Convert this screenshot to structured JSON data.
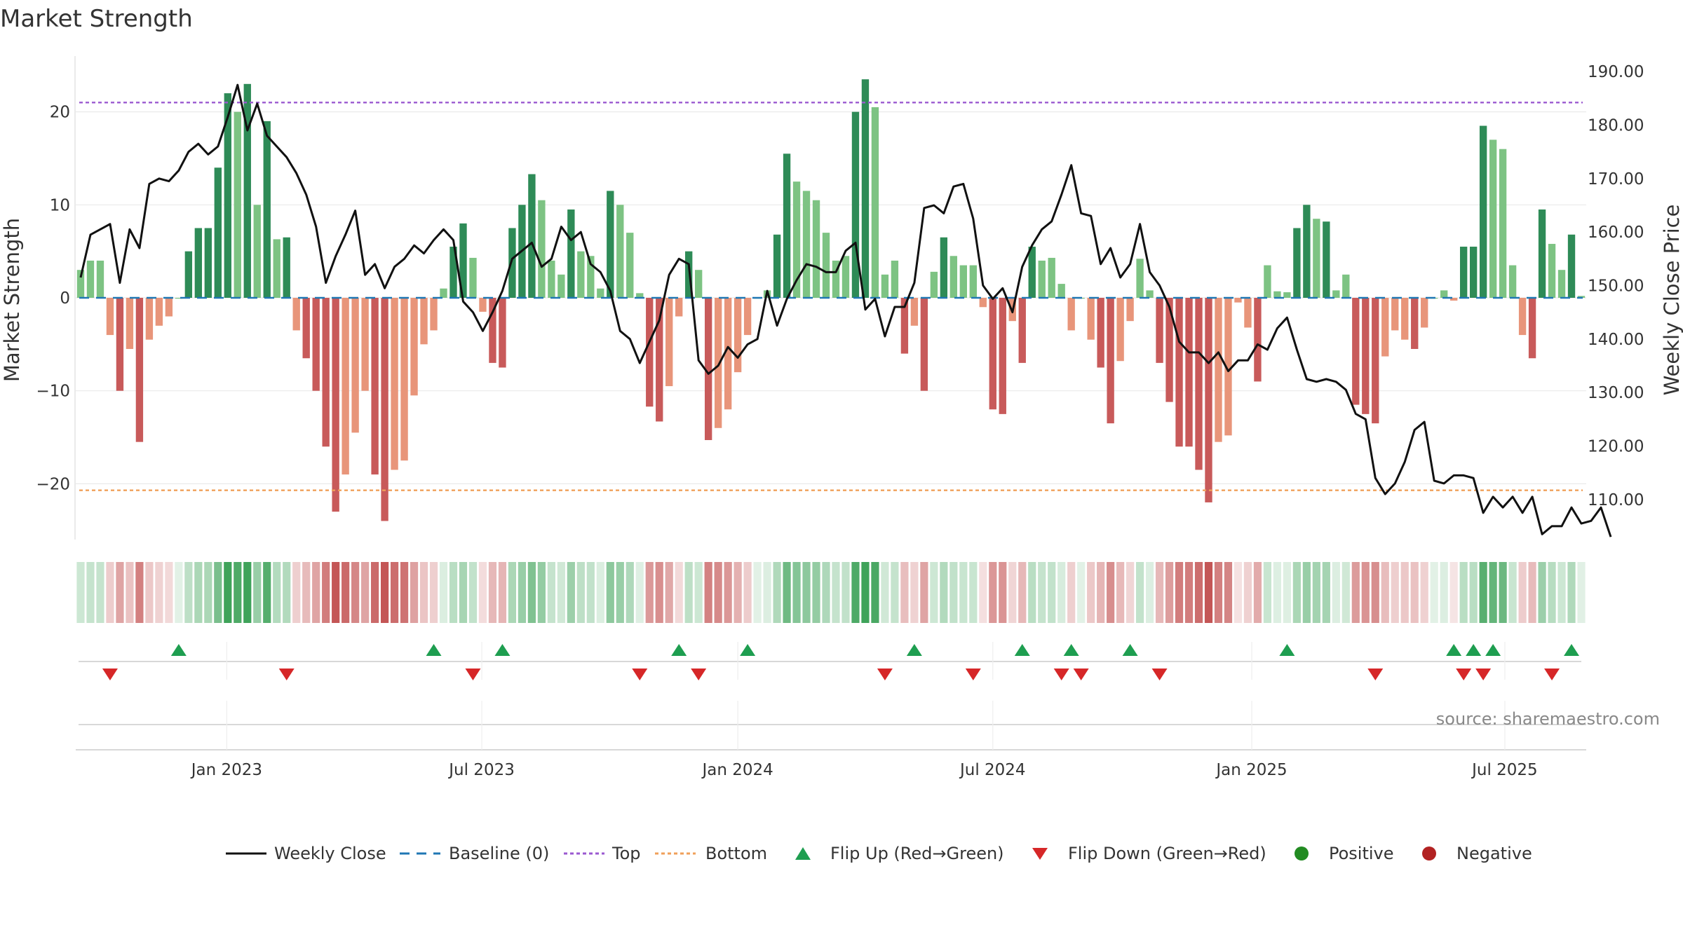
{
  "chart_data": {
    "title": "Market Strength",
    "source": "source: sharemaestro.com",
    "type": "bar",
    "left_axis": {
      "label": "Market Strength",
      "ylim": [
        -26,
        26
      ],
      "ticks": [
        20,
        10,
        0,
        -10,
        -20
      ],
      "tick_labels": [
        "20",
        "10",
        "0",
        "−10",
        "−20"
      ]
    },
    "right_axis": {
      "label": "Weekly Close Price",
      "ylim": [
        102.5,
        192.9
      ],
      "ticks": [
        190,
        180,
        170,
        160,
        150,
        140,
        130,
        120,
        110
      ],
      "tick_labels": [
        "190.00",
        "180.00",
        "170.00",
        "160.00",
        "150.00",
        "140.00",
        "130.00",
        "120.00",
        "110.00"
      ]
    },
    "x_axis": {
      "start_date": "2022-10-17",
      "week_count": 158,
      "ticks": [
        {
          "label": "Jan 2023",
          "week": 15.4
        },
        {
          "label": "Jul 2023",
          "week": 41.4
        },
        {
          "label": "Jan 2024",
          "week": 67.5
        },
        {
          "label": "Jul 2024",
          "week": 93.5
        },
        {
          "label": "Jan 2025",
          "week": 119.9
        },
        {
          "label": "Jul 2025",
          "week": 145.7
        }
      ]
    },
    "reference_lines": {
      "top": 21,
      "bottom": -20.7,
      "baseline": 0
    },
    "colors": {
      "strong_green": "#2e8b57",
      "light_green": "#7dc383",
      "strong_red": "#c85a5a",
      "light_red": "#e8957a",
      "close_line": "#111111",
      "baseline": "#1f77b4",
      "top": "#9b59d0",
      "bottom": "#f0a05a",
      "flip_up": "#1e9e50",
      "flip_down": "#d62728",
      "positive": "#228b22",
      "negative": "#b22222"
    },
    "strength": [
      3,
      4,
      4,
      -4,
      -10,
      -5.5,
      -15.5,
      -4.5,
      -3,
      -2,
      0,
      5,
      7.5,
      7.5,
      14,
      22,
      20,
      23,
      10,
      19,
      6.3,
      6.5,
      -3.5,
      -6.5,
      -10,
      -16,
      -23,
      -19,
      -14.5,
      -10,
      -19,
      -24,
      -18.5,
      -17.5,
      -10.5,
      -5,
      -3.5,
      1,
      5.5,
      8,
      4.3,
      -1.5,
      -7,
      -7.5,
      7.5,
      10,
      13.3,
      10.5,
      4,
      2.5,
      9.5,
      5,
      4.5,
      1,
      11.5,
      10,
      7,
      0.5,
      -11.7,
      -13.3,
      -9.5,
      -2,
      5,
      3,
      -15.3,
      -14,
      -12,
      -8,
      -4,
      0,
      0.8,
      6.8,
      15.5,
      12.5,
      11.5,
      10.5,
      7,
      4,
      4.5,
      20,
      23.5,
      20.5,
      2.5,
      4,
      -6,
      -3,
      -10,
      2.8,
      6.5,
      4.5,
      3.5,
      3.5,
      -1,
      -12,
      -12.5,
      -2.5,
      -7,
      5.5,
      4,
      4.3,
      1.5,
      -3.5,
      0,
      -4.5,
      -7.5,
      -13.5,
      -6.8,
      -2.5,
      4.2,
      0.8,
      -7,
      -11.2,
      -16,
      -16,
      -18.5,
      -22,
      -15.5,
      -14.8,
      -0.5,
      -3.2,
      -9,
      3.5,
      0.7,
      0.6,
      7.5,
      10,
      8.5,
      8.2,
      0.8,
      2.5,
      -11.5,
      -12.5,
      -13.5,
      -6.3,
      -3.5,
      -4.5,
      -5.5,
      -3.2,
      0,
      0.8,
      -0.3,
      5.5,
      5.5,
      18.5,
      17,
      16,
      3.5,
      -4,
      -6.5,
      9.5,
      5.8,
      3,
      6.8,
      0.2
    ],
    "close": [
      151.5,
      159.5,
      160.5,
      161.5,
      150.5,
      160.5,
      157,
      169,
      170,
      169.5,
      171.5,
      175,
      176.5,
      174.5,
      176,
      181.5,
      187.5,
      179,
      184,
      178,
      176,
      174,
      171,
      167,
      161,
      150.5,
      155.5,
      159.5,
      164,
      152,
      154,
      149.5,
      153.5,
      155,
      157.5,
      156,
      158.5,
      160.5,
      158.5,
      147,
      145,
      141.5,
      145,
      149,
      155,
      156.5,
      158,
      153.5,
      155,
      161,
      158.5,
      160,
      154,
      152.5,
      149,
      141.5,
      140,
      135.5,
      139.5,
      143.5,
      152,
      155,
      154,
      136,
      133.5,
      135,
      138.5,
      136.5,
      139,
      140,
      149,
      142.5,
      147.5,
      151,
      154,
      153.5,
      152.5,
      152.5,
      156.5,
      158,
      145.5,
      147.5,
      140.5,
      146,
      146,
      150.5,
      164.5,
      165,
      163.5,
      168.5,
      169,
      162.5,
      150,
      147.5,
      149.5,
      145,
      153.5,
      157.5,
      160.5,
      162,
      167,
      172.5,
      163.5,
      163,
      154,
      157,
      151.5,
      154,
      161.5,
      152.5,
      150,
      146,
      139.5,
      137.5,
      137.5,
      135.5,
      137.5,
      134,
      136,
      136,
      139,
      138,
      142,
      144,
      138,
      132.5,
      132,
      132.5,
      132,
      130.5,
      126,
      125,
      114,
      111,
      113,
      117,
      123,
      124.5,
      113.5,
      113,
      114.5,
      114.5,
      114,
      107.5,
      110.5,
      108.5,
      110.5,
      107.5,
      110.5,
      103.5,
      105,
      105,
      108.5,
      105.5,
      106,
      108.5,
      103
    ],
    "flip_up_weeks": [
      10.5,
      36.5,
      43.5,
      61.5,
      68.5,
      85.5,
      96.5,
      101.5,
      107.5,
      123.5,
      140.5,
      142.5,
      144.5,
      152.5
    ],
    "flip_down_weeks": [
      3.5,
      21.5,
      40.5,
      57.5,
      63.5,
      82.5,
      91.5,
      100.5,
      102.5,
      110.5,
      132.5,
      141.5,
      143.5,
      150.5
    ],
    "legend": {
      "weekly_close": "Weekly Close",
      "baseline": "Baseline (0)",
      "top": "Top",
      "bottom": "Bottom",
      "flip_up": "Flip Up (Red→Green)",
      "flip_down": "Flip Down (Green→Red)",
      "positive": "Positive",
      "negative": "Negative"
    }
  }
}
